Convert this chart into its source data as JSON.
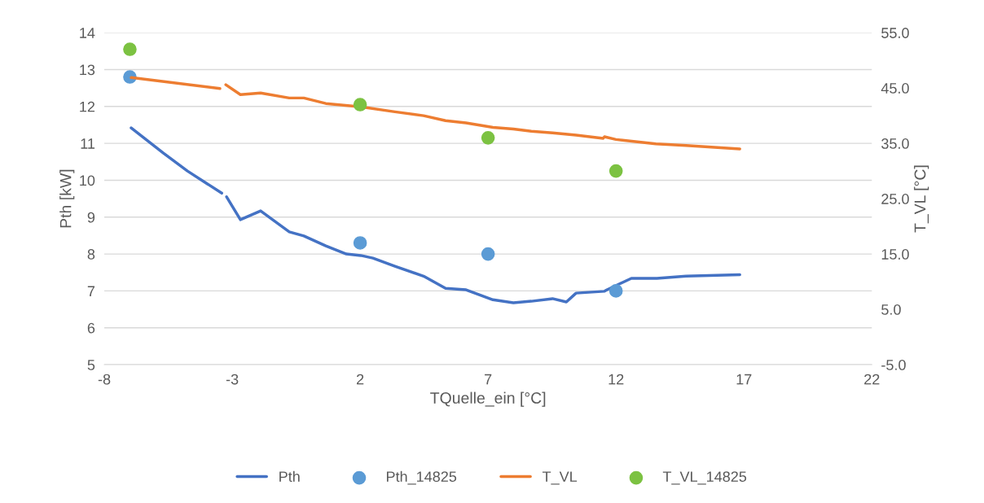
{
  "chart_data": {
    "type": "line",
    "xlabel": "TQuelle_ein [°C]",
    "ylabel": "Pth [kW]",
    "y2label": "T_VL [°C]",
    "xlim": [
      -8,
      22
    ],
    "xticks": [
      -8,
      -3,
      2,
      7,
      12,
      17,
      22
    ],
    "ylim": [
      5,
      14
    ],
    "yticks": [
      5,
      6,
      7,
      8,
      9,
      10,
      11,
      12,
      13,
      14
    ],
    "y2lim": [
      -5,
      55
    ],
    "y2ticks": [
      {
        "value": -5,
        "label": "-5.0"
      },
      {
        "value": 5,
        "label": "5.0"
      },
      {
        "value": 15,
        "label": "15.0"
      },
      {
        "value": 25,
        "label": "25.0"
      },
      {
        "value": 35,
        "label": "35.0"
      },
      {
        "value": 45,
        "label": "45.0"
      },
      {
        "value": 55,
        "label": "55.0"
      }
    ],
    "grid": "y",
    "legend": "bottom",
    "marker": "none",
    "line_style": "solid",
    "series": [
      {
        "name": "Pth",
        "color": "#4472c4",
        "x": [
          -6.95,
          -5.7,
          -4.75,
          -3.41,
          -3.3,
          -3.22,
          -2.68,
          -1.89,
          -0.77,
          -0.2,
          0.66,
          1.46,
          2.03,
          2.5,
          3.36,
          4.48,
          5.34,
          6.14,
          7.19,
          7.99,
          8.69,
          9.52,
          10.06,
          10.44,
          11.55,
          11.65,
          12.6,
          13.6,
          14.74,
          16.84
        ],
        "values": [
          11.42,
          10.74,
          10.25,
          9.65,
          null,
          9.55,
          8.93,
          9.17,
          8.6,
          8.49,
          8.22,
          8.0,
          7.96,
          7.89,
          7.67,
          7.4,
          7.07,
          7.03,
          6.76,
          6.68,
          6.72,
          6.79,
          6.7,
          6.94,
          6.99,
          7.03,
          7.34,
          7.34,
          7.4,
          7.44
        ]
      },
      {
        "name": "Pth_14825",
        "type": "scatter",
        "marker": "circle",
        "color": "#5b9bd5",
        "x": [
          -7,
          2,
          7,
          12
        ],
        "values": [
          12.8,
          8.3,
          8.0,
          7.0
        ]
      },
      {
        "name": "T_VL",
        "axis": "y2",
        "color": "#ed7d31",
        "x": [
          -6.95,
          -3.48,
          -3.36,
          -3.25,
          -2.68,
          -1.89,
          -0.77,
          -0.2,
          0.66,
          2.03,
          3.36,
          4.48,
          5.34,
          6.14,
          7.19,
          7.99,
          8.69,
          9.52,
          10.44,
          11.5,
          11.55,
          12.0,
          13.56,
          14.74,
          16.84
        ],
        "values": [
          46.9,
          44.9,
          null,
          45.6,
          43.8,
          44.1,
          43.2,
          43.2,
          42.2,
          41.6,
          40.7,
          40.0,
          39.1,
          38.7,
          37.9,
          37.6,
          37.2,
          36.9,
          36.5,
          35.9,
          36.2,
          35.7,
          34.9,
          34.6,
          34.0
        ]
      },
      {
        "name": "T_VL_14825",
        "type": "scatter",
        "axis": "y2",
        "marker": "circle",
        "color": "#7cc242",
        "x": [
          -7,
          2,
          7,
          12
        ],
        "values": [
          52,
          42,
          36,
          30
        ]
      }
    ]
  }
}
